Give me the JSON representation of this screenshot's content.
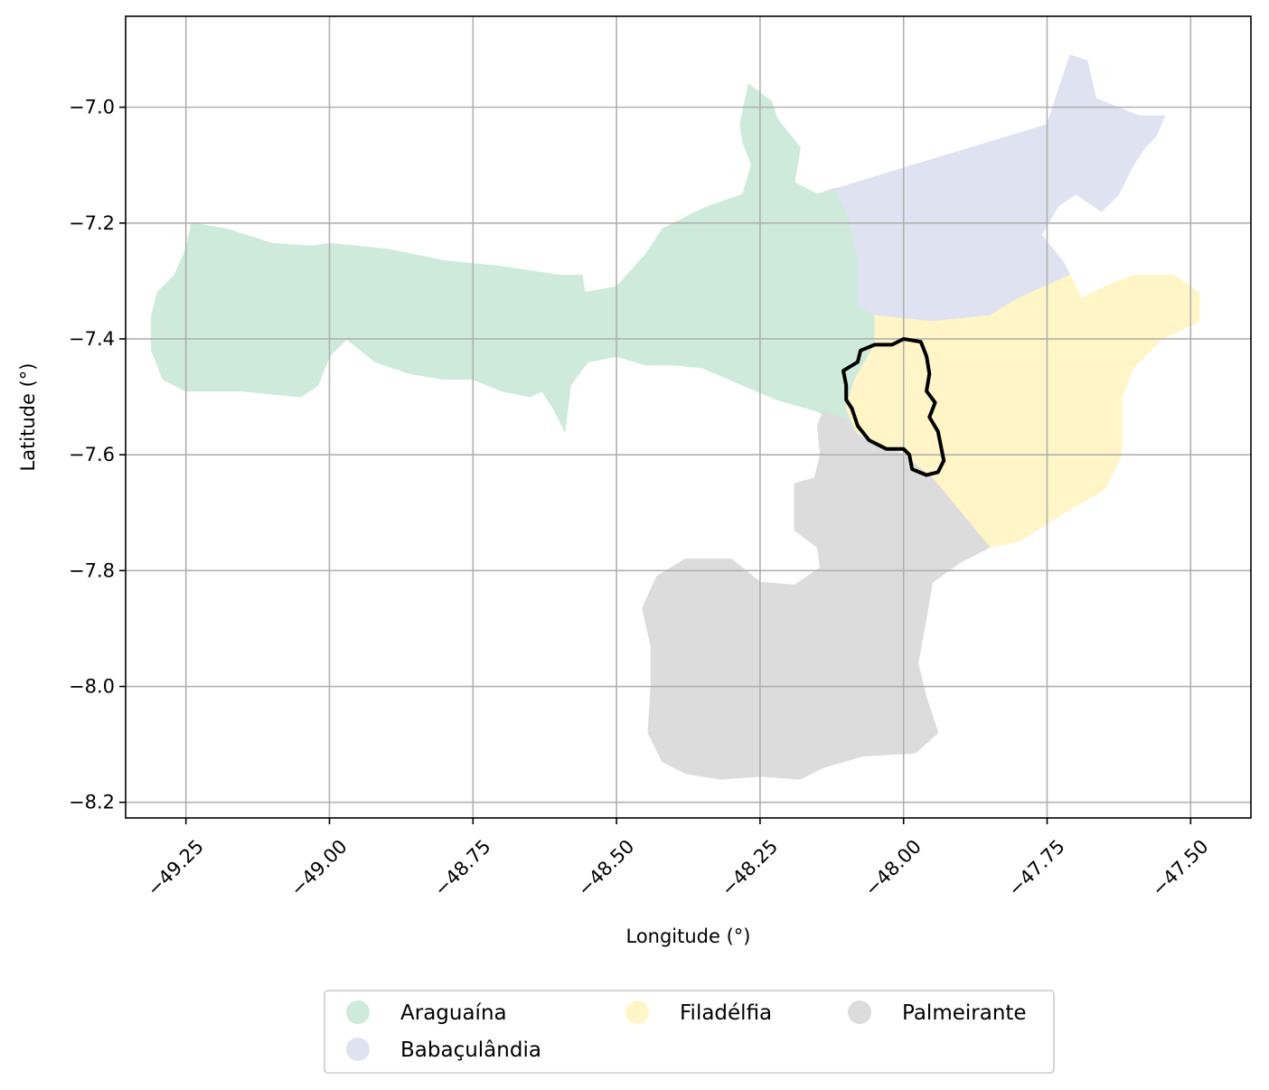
{
  "chart_data": {
    "type": "map",
    "xlabel": "Longitude (°)",
    "ylabel": "Latitude (°)",
    "xlim": [
      -49.355,
      -47.395
    ],
    "ylim": [
      -8.227,
      -6.843
    ],
    "grid": true,
    "x_ticks": [
      -49.25,
      -49.0,
      -48.75,
      -48.5,
      -48.25,
      -48.0,
      -47.75,
      -47.5
    ],
    "x_tick_labels": [
      "−49.25",
      "−49.00",
      "−48.75",
      "−48.50",
      "−48.25",
      "−48.00",
      "−47.75",
      "−47.50"
    ],
    "y_ticks": [
      -7.0,
      -7.2,
      -7.4,
      -7.6,
      -7.8,
      -8.0,
      -8.2
    ],
    "y_tick_labels": [
      "−7.0",
      "−7.2",
      "−7.4",
      "−7.6",
      "−7.8",
      "−8.0",
      "−8.2"
    ],
    "legend": {
      "placement": "bottom-center",
      "entries": [
        {
          "name": "Araguaína",
          "color": "#cdeadb"
        },
        {
          "name": "Babaçulândia",
          "color": "#dfe3f1"
        },
        {
          "name": "Filadélfia",
          "color": "#fff5c6"
        },
        {
          "name": "Palmeirante",
          "color": "#dcdcdc"
        }
      ]
    },
    "regions": [
      {
        "name": "Araguaína",
        "color": "#cdeadb",
        "polygon": [
          [
            -49.31,
            -7.36
          ],
          [
            -49.3,
            -7.32
          ],
          [
            -49.27,
            -7.29
          ],
          [
            -49.25,
            -7.245
          ],
          [
            -49.24,
            -7.2
          ],
          [
            -49.18,
            -7.21
          ],
          [
            -49.1,
            -7.235
          ],
          [
            -49.03,
            -7.24
          ],
          [
            -49.0,
            -7.235
          ],
          [
            -48.9,
            -7.245
          ],
          [
            -48.8,
            -7.265
          ],
          [
            -48.7,
            -7.275
          ],
          [
            -48.6,
            -7.29
          ],
          [
            -48.56,
            -7.29
          ],
          [
            -48.555,
            -7.32
          ],
          [
            -48.5,
            -7.31
          ],
          [
            -48.45,
            -7.255
          ],
          [
            -48.42,
            -7.21
          ],
          [
            -48.35,
            -7.175
          ],
          [
            -48.28,
            -7.15
          ],
          [
            -48.265,
            -7.1
          ],
          [
            -48.28,
            -7.06
          ],
          [
            -48.285,
            -7.03
          ],
          [
            -48.27,
            -6.96
          ],
          [
            -48.23,
            -6.99
          ],
          [
            -48.22,
            -7.02
          ],
          [
            -48.18,
            -7.07
          ],
          [
            -48.19,
            -7.13
          ],
          [
            -48.15,
            -7.15
          ],
          [
            -48.12,
            -7.14
          ],
          [
            -48.095,
            -7.19
          ],
          [
            -48.08,
            -7.26
          ],
          [
            -48.08,
            -7.34
          ],
          [
            -48.05,
            -7.36
          ],
          [
            -48.05,
            -7.41
          ],
          [
            -48.085,
            -7.47
          ],
          [
            -48.1,
            -7.52
          ],
          [
            -48.08,
            -7.565
          ],
          [
            -48.15,
            -7.525
          ],
          [
            -48.22,
            -7.505
          ],
          [
            -48.28,
            -7.48
          ],
          [
            -48.35,
            -7.45
          ],
          [
            -48.4,
            -7.445
          ],
          [
            -48.45,
            -7.445
          ],
          [
            -48.5,
            -7.43
          ],
          [
            -48.55,
            -7.44
          ],
          [
            -48.58,
            -7.48
          ],
          [
            -48.585,
            -7.52
          ],
          [
            -48.59,
            -7.56
          ],
          [
            -48.61,
            -7.52
          ],
          [
            -48.63,
            -7.49
          ],
          [
            -48.65,
            -7.5
          ],
          [
            -48.7,
            -7.49
          ],
          [
            -48.75,
            -7.47
          ],
          [
            -48.8,
            -7.47
          ],
          [
            -48.86,
            -7.46
          ],
          [
            -48.92,
            -7.44
          ],
          [
            -48.97,
            -7.4
          ],
          [
            -49.0,
            -7.43
          ],
          [
            -49.02,
            -7.48
          ],
          [
            -49.05,
            -7.5
          ],
          [
            -49.15,
            -7.49
          ],
          [
            -49.25,
            -7.49
          ],
          [
            -49.29,
            -7.47
          ],
          [
            -49.31,
            -7.42
          ]
        ]
      },
      {
        "name": "Babaçulândia",
        "color": "#dfe3f1",
        "polygon": [
          [
            -48.15,
            -7.15
          ],
          [
            -47.75,
            -7.03
          ],
          [
            -47.71,
            -6.91
          ],
          [
            -47.68,
            -6.92
          ],
          [
            -47.665,
            -6.985
          ],
          [
            -47.59,
            -7.015
          ],
          [
            -47.545,
            -7.015
          ],
          [
            -47.56,
            -7.05
          ],
          [
            -47.58,
            -7.07
          ],
          [
            -47.6,
            -7.1
          ],
          [
            -47.625,
            -7.15
          ],
          [
            -47.655,
            -7.18
          ],
          [
            -47.7,
            -7.15
          ],
          [
            -47.73,
            -7.17
          ],
          [
            -47.76,
            -7.22
          ],
          [
            -47.72,
            -7.27
          ],
          [
            -47.71,
            -7.29
          ],
          [
            -47.8,
            -7.33
          ],
          [
            -47.85,
            -7.36
          ],
          [
            -47.95,
            -7.37
          ],
          [
            -48.02,
            -7.39
          ],
          [
            -48.05,
            -7.36
          ],
          [
            -48.08,
            -7.34
          ],
          [
            -48.08,
            -7.26
          ],
          [
            -48.095,
            -7.19
          ],
          [
            -48.12,
            -7.14
          ]
        ]
      },
      {
        "name": "Filadélfia",
        "color": "#fff5c6",
        "polygon": [
          [
            -48.05,
            -7.36
          ],
          [
            -47.95,
            -7.37
          ],
          [
            -47.85,
            -7.36
          ],
          [
            -47.8,
            -7.33
          ],
          [
            -47.71,
            -7.29
          ],
          [
            -47.69,
            -7.33
          ],
          [
            -47.65,
            -7.31
          ],
          [
            -47.6,
            -7.29
          ],
          [
            -47.53,
            -7.29
          ],
          [
            -47.485,
            -7.32
          ],
          [
            -47.485,
            -7.37
          ],
          [
            -47.55,
            -7.4
          ],
          [
            -47.6,
            -7.45
          ],
          [
            -47.62,
            -7.5
          ],
          [
            -47.62,
            -7.6
          ],
          [
            -47.65,
            -7.66
          ],
          [
            -47.72,
            -7.7
          ],
          [
            -47.8,
            -7.75
          ],
          [
            -47.85,
            -7.76
          ],
          [
            -47.9,
            -7.7
          ],
          [
            -47.95,
            -7.64
          ],
          [
            -48.0,
            -7.6
          ],
          [
            -48.05,
            -7.58
          ],
          [
            -48.08,
            -7.565
          ],
          [
            -48.1,
            -7.52
          ],
          [
            -48.085,
            -7.47
          ],
          [
            -48.05,
            -7.41
          ]
        ]
      },
      {
        "name": "Palmeirante",
        "color": "#dcdcdc",
        "polygon": [
          [
            -48.08,
            -7.565
          ],
          [
            -48.05,
            -7.58
          ],
          [
            -48.0,
            -7.6
          ],
          [
            -47.95,
            -7.64
          ],
          [
            -47.9,
            -7.7
          ],
          [
            -47.85,
            -7.76
          ],
          [
            -47.9,
            -7.785
          ],
          [
            -47.95,
            -7.82
          ],
          [
            -47.96,
            -7.88
          ],
          [
            -47.975,
            -7.96
          ],
          [
            -47.96,
            -8.02
          ],
          [
            -47.94,
            -8.08
          ],
          [
            -47.98,
            -8.115
          ],
          [
            -48.07,
            -8.12
          ],
          [
            -48.14,
            -8.14
          ],
          [
            -48.18,
            -8.16
          ],
          [
            -48.25,
            -8.155
          ],
          [
            -48.32,
            -8.16
          ],
          [
            -48.38,
            -8.15
          ],
          [
            -48.42,
            -8.13
          ],
          [
            -48.445,
            -8.08
          ],
          [
            -48.44,
            -8.0
          ],
          [
            -48.44,
            -7.93
          ],
          [
            -48.455,
            -7.865
          ],
          [
            -48.43,
            -7.81
          ],
          [
            -48.38,
            -7.78
          ],
          [
            -48.3,
            -7.78
          ],
          [
            -48.25,
            -7.82
          ],
          [
            -48.19,
            -7.825
          ],
          [
            -48.145,
            -7.795
          ],
          [
            -48.15,
            -7.76
          ],
          [
            -48.19,
            -7.73
          ],
          [
            -48.19,
            -7.65
          ],
          [
            -48.155,
            -7.64
          ],
          [
            -48.145,
            -7.6
          ],
          [
            -48.15,
            -7.55
          ],
          [
            -48.14,
            -7.525
          ],
          [
            -48.1,
            -7.54
          ]
        ]
      }
    ],
    "outline": {
      "color": "#000000",
      "polygon": [
        [
          -48.0,
          -7.4
        ],
        [
          -47.97,
          -7.405
        ],
        [
          -47.96,
          -7.43
        ],
        [
          -47.955,
          -7.46
        ],
        [
          -47.96,
          -7.49
        ],
        [
          -47.945,
          -7.51
        ],
        [
          -47.955,
          -7.535
        ],
        [
          -47.94,
          -7.56
        ],
        [
          -47.93,
          -7.61
        ],
        [
          -47.94,
          -7.63
        ],
        [
          -47.96,
          -7.635
        ],
        [
          -47.985,
          -7.625
        ],
        [
          -47.99,
          -7.6
        ],
        [
          -48.0,
          -7.59
        ],
        [
          -48.03,
          -7.59
        ],
        [
          -48.06,
          -7.575
        ],
        [
          -48.08,
          -7.55
        ],
        [
          -48.09,
          -7.52
        ],
        [
          -48.1,
          -7.505
        ],
        [
          -48.1,
          -7.48
        ],
        [
          -48.105,
          -7.455
        ],
        [
          -48.08,
          -7.44
        ],
        [
          -48.075,
          -7.42
        ],
        [
          -48.05,
          -7.41
        ],
        [
          -48.02,
          -7.41
        ]
      ]
    }
  }
}
